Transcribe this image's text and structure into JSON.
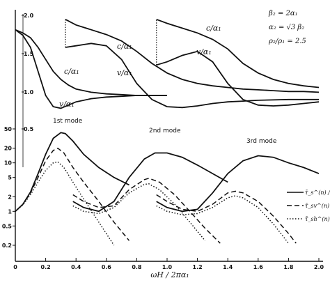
{
  "chart_data": {
    "type": "line",
    "title": "",
    "xlabel": "ωH / 2πα₁",
    "xlim": [
      0,
      2.0
    ],
    "x_ticks": [
      "0",
      "0.2",
      "0.4",
      "0.6",
      "0.8",
      "1.0",
      "1.2",
      "1.4",
      "1.6",
      "1.8",
      "2.0"
    ],
    "upper_panel": {
      "description_labels": [
        "c/α₁",
        "v/α₁"
      ],
      "ylim": [
        0.85,
        2.0
      ],
      "y_ticks": [
        "2.0",
        "1.5",
        "1.0",
        "0.5"
      ],
      "annotations": [
        "c/α₁",
        "v/α₁",
        "c/α₁",
        "v/α₁",
        "c/α₁",
        "v/α₁"
      ],
      "series": [
        {
          "name": "c/α₁",
          "x": [
            0,
            0.05,
            0.1,
            0.15,
            0.2,
            0.25,
            0.3,
            0.35,
            0.4,
            0.5,
            0.6,
            0.7,
            0.8,
            0.9,
            1.0
          ],
          "values": [
            1.82,
            1.78,
            1.72,
            1.6,
            1.45,
            1.3,
            1.2,
            1.13,
            1.08,
            1.04,
            1.02,
            1.01,
            1.0,
            1.0,
            1.0
          ]
        },
        {
          "name": "v/α₁",
          "x": [
            0,
            0.05,
            0.1,
            0.15,
            0.2,
            0.25,
            0.3,
            0.35,
            0.4,
            0.5,
            0.6,
            0.7,
            0.8,
            0.9,
            1.0
          ],
          "values": [
            1.82,
            1.75,
            1.6,
            1.3,
            1.0,
            0.86,
            0.84,
            0.88,
            0.92,
            0.96,
            0.98,
            0.99,
            1.0,
            1.0,
            1.0
          ]
        },
        {
          "name": "c/α₁",
          "x": [
            0.33,
            0.4,
            0.5,
            0.6,
            0.7,
            0.8,
            0.9,
            1.0,
            1.1,
            1.2,
            1.3,
            1.4,
            1.5,
            1.6,
            1.7,
            1.8,
            1.9,
            2.0
          ],
          "values": [
            1.95,
            1.88,
            1.82,
            1.76,
            1.68,
            1.55,
            1.4,
            1.28,
            1.2,
            1.15,
            1.12,
            1.1,
            1.08,
            1.07,
            1.06,
            1.05,
            1.05,
            1.04
          ]
        },
        {
          "name": "v/α₁",
          "x": [
            0.33,
            0.4,
            0.5,
            0.6,
            0.7,
            0.8,
            0.9,
            1.0,
            1.1,
            1.2,
            1.3,
            1.4,
            1.5,
            1.6,
            1.8,
            2.0
          ],
          "values": [
            1.6,
            1.62,
            1.65,
            1.62,
            1.45,
            1.15,
            0.95,
            0.86,
            0.85,
            0.87,
            0.9,
            0.92,
            0.93,
            0.94,
            0.95,
            0.95
          ]
        },
        {
          "name": "c/α₁",
          "x": [
            0.93,
            1.0,
            1.1,
            1.2,
            1.3,
            1.4,
            1.5,
            1.6,
            1.7,
            1.8,
            1.9,
            2.0
          ],
          "values": [
            1.95,
            1.9,
            1.84,
            1.78,
            1.7,
            1.58,
            1.4,
            1.28,
            1.2,
            1.15,
            1.12,
            1.1
          ]
        },
        {
          "name": "v/α₁",
          "x": [
            0.93,
            1.0,
            1.1,
            1.2,
            1.3,
            1.4,
            1.5,
            1.6,
            1.7,
            1.8,
            1.9,
            2.0
          ],
          "values": [
            1.38,
            1.42,
            1.5,
            1.55,
            1.42,
            1.15,
            0.95,
            0.88,
            0.87,
            0.88,
            0.9,
            0.92
          ]
        }
      ]
    },
    "lower_panel": {
      "scale": "log",
      "ylim": [
        0.2,
        50
      ],
      "y_ticks": [
        "50",
        "20",
        "10",
        "5",
        "2",
        "1",
        "0.5",
        "0.2"
      ],
      "mode_labels": [
        "1st mode",
        "2nd mode",
        "3rd mode"
      ],
      "legend": {
        "placement": "right",
        "entries": [
          {
            "label": "τ̄_s^(n) / τ̄_s^R",
            "style": "solid"
          },
          {
            "label": "τ̄_sv^(n) / τ̄_sv^R",
            "style": "dashed"
          },
          {
            "label": "τ̄_sh^(n) / τ̄_sh^R",
            "style": "dotted"
          }
        ]
      },
      "series": [
        {
          "name": "τ̄_s^(n) / τ̄_s^R",
          "style": "solid",
          "x": [
            0,
            0.05,
            0.1,
            0.15,
            0.2,
            0.25,
            0.3,
            0.33,
            0.38,
            0.45,
            0.55,
            0.65,
            0.75
          ],
          "values": [
            1.0,
            1.4,
            2.5,
            6,
            15,
            32,
            42,
            40,
            28,
            15,
            8,
            5,
            3.5
          ]
        },
        {
          "name": "τ̄_sv^(n) / τ̄_sv^R",
          "style": "dashed",
          "x": [
            0,
            0.05,
            0.1,
            0.15,
            0.2,
            0.25,
            0.28,
            0.32,
            0.38,
            0.45,
            0.55,
            0.65,
            0.75
          ],
          "values": [
            1.0,
            1.4,
            2.4,
            5,
            11,
            18,
            20,
            16,
            8,
            4,
            1.6,
            0.6,
            0.25
          ]
        },
        {
          "name": "τ̄_sh^(n) / τ̄_sh^R",
          "style": "dotted",
          "x": [
            0,
            0.05,
            0.1,
            0.15,
            0.2,
            0.25,
            0.28,
            0.32,
            0.38,
            0.45,
            0.55,
            0.65
          ],
          "values": [
            1.0,
            1.35,
            2.2,
            4,
            7,
            10,
            10.5,
            8,
            4,
            1.8,
            0.6,
            0.2
          ]
        },
        {
          "name": "τ̄_s^(n) / τ̄_s^R",
          "style": "solid",
          "x": [
            0.38,
            0.45,
            0.55,
            0.65,
            0.75,
            0.85,
            0.92,
            1.0,
            1.1,
            1.2,
            1.3,
            1.4
          ],
          "values": [
            1.6,
            1.2,
            1.0,
            1.6,
            5,
            12,
            16,
            16,
            13,
            9,
            6,
            4
          ]
        },
        {
          "name": "τ̄_sv^(n) / τ̄_sv^R",
          "style": "dashed",
          "x": [
            0.38,
            0.45,
            0.55,
            0.65,
            0.75,
            0.85,
            0.88,
            0.95,
            1.05,
            1.15,
            1.25,
            1.35
          ],
          "values": [
            2.2,
            1.6,
            1.2,
            1.3,
            2.8,
            4.5,
            4.8,
            4,
            2.2,
            1.0,
            0.45,
            0.22
          ]
        },
        {
          "name": "τ̄_sh^(n) / τ̄_sh^R",
          "style": "dotted",
          "x": [
            0.38,
            0.45,
            0.55,
            0.65,
            0.75,
            0.85,
            0.88,
            0.95,
            1.05,
            1.15,
            1.25
          ],
          "values": [
            1.3,
            1.0,
            0.9,
            1.2,
            2.4,
            3.6,
            3.7,
            2.8,
            1.4,
            0.6,
            0.25
          ]
        },
        {
          "name": "τ̄_s^(n) / τ̄_s^R",
          "style": "solid",
          "x": [
            0.93,
            1.0,
            1.1,
            1.2,
            1.3,
            1.4,
            1.5,
            1.6,
            1.7,
            1.8,
            1.9,
            2.0
          ],
          "values": [
            1.6,
            1.2,
            1.0,
            1.1,
            2.4,
            6,
            11,
            14,
            13,
            10,
            8,
            6
          ]
        },
        {
          "name": "τ̄_sv^(n) / τ̄_sv^R",
          "style": "dashed",
          "x": [
            0.93,
            1.0,
            1.1,
            1.2,
            1.3,
            1.4,
            1.45,
            1.5,
            1.6,
            1.7,
            1.8,
            1.85
          ],
          "values": [
            2.2,
            1.6,
            1.1,
            1.0,
            1.4,
            2.4,
            2.6,
            2.4,
            1.6,
            0.8,
            0.35,
            0.22
          ]
        },
        {
          "name": "τ̄_sh^(n) / τ̄_sh^R",
          "style": "dotted",
          "x": [
            0.93,
            1.0,
            1.1,
            1.2,
            1.3,
            1.4,
            1.45,
            1.5,
            1.6,
            1.7,
            1.8
          ],
          "values": [
            1.3,
            1.0,
            0.85,
            0.9,
            1.2,
            1.9,
            2.1,
            1.9,
            1.2,
            0.55,
            0.22
          ]
        }
      ]
    },
    "parameters": [
      "β₂ = 2α₁",
      "α₂ = √3 β₂",
      "ρ₂/ρ₁ = 2.5"
    ]
  }
}
